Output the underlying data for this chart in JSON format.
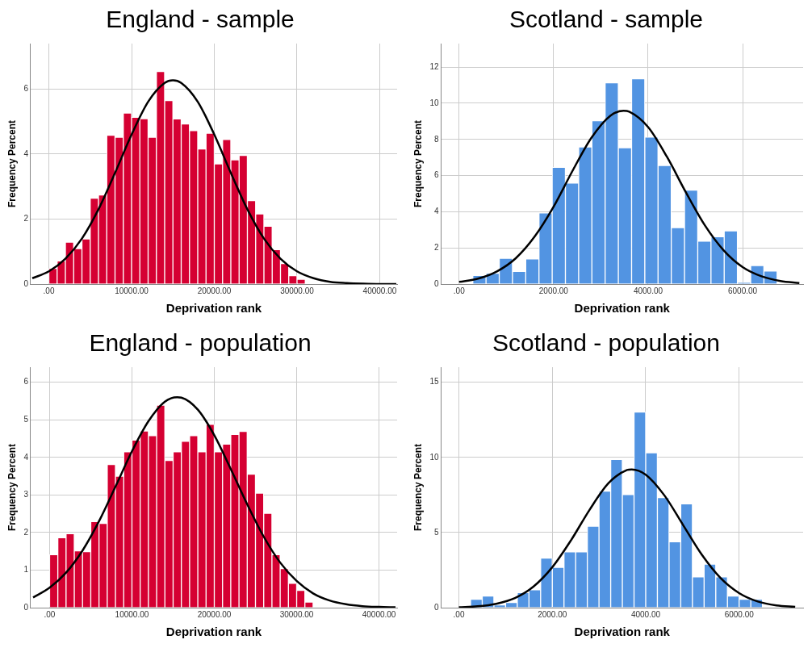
{
  "chart_data": [
    {
      "type": "histogram",
      "title": "England - sample",
      "xlabel": "Deprivation rank",
      "ylabel": "Frequency Percent",
      "grid": true,
      "marker": "none",
      "xlim": [
        -2200,
        42100
      ],
      "ylim": [
        0,
        7.4
      ],
      "xticks": [
        {
          "value": 0,
          "label": ".00"
        },
        {
          "value": 10000,
          "label": "10000.00"
        },
        {
          "value": 20000,
          "label": "20000.00"
        },
        {
          "value": 30000,
          "label": "30000.00"
        },
        {
          "value": 40000,
          "label": "40000.00"
        }
      ],
      "yticks": [
        0,
        2,
        4,
        6
      ],
      "series": [
        {
          "color": "#d50032",
          "bins": [
            0,
            1000,
            2000,
            3000,
            4000,
            5000,
            6000,
            7000,
            8000,
            9000,
            10000,
            11000,
            12000,
            13000,
            14000,
            15000,
            16000,
            17000,
            18000,
            19000,
            20000,
            21000,
            22000,
            23000,
            24000,
            25000,
            26000,
            27000,
            28000,
            29000,
            30000,
            31000,
            32000
          ],
          "values": [
            0.48,
            0.71,
            1.29,
            1.09,
            1.39,
            2.64,
            2.74,
            4.58,
            4.52,
            5.26,
            5.13,
            5.09,
            4.52,
            6.54,
            5.65,
            5.08,
            4.93,
            4.72,
            4.16,
            4.64,
            3.7,
            4.45,
            3.82,
            3.96,
            2.57,
            2.16,
            1.78,
            1.06,
            0.63,
            0.26,
            0.15,
            null
          ]
        },
        {
          "type": "line",
          "color": "#000000",
          "x": [
            -2000,
            0,
            2000,
            4000,
            6000,
            8000,
            10000,
            12000,
            14000,
            15000,
            16000,
            18000,
            20000,
            22000,
            24000,
            26000,
            28000,
            30000,
            32000,
            34000,
            36000,
            38000,
            40000,
            42000
          ],
          "values": [
            0.18,
            0.39,
            0.78,
            1.4,
            2.3,
            3.42,
            4.6,
            5.61,
            6.19,
            6.27,
            6.19,
            5.61,
            4.6,
            3.42,
            2.3,
            1.4,
            0.78,
            0.39,
            0.18,
            0.07,
            0.03,
            0.01,
            0,
            0
          ]
        }
      ]
    },
    {
      "type": "histogram",
      "title": "Scotland - sample",
      "xlabel": "Deprivation rank",
      "ylabel": "Frequency Percent",
      "grid": true,
      "marker": "none",
      "xlim": [
        -380,
        7280
      ],
      "ylim": [
        0,
        13.3
      ],
      "xticks": [
        {
          "value": 0,
          "label": ".00"
        },
        {
          "value": 2000,
          "label": "2000.00"
        },
        {
          "value": 4000,
          "label": "4000.00"
        },
        {
          "value": 6000,
          "label": "6000.00"
        }
      ],
      "yticks": [
        0,
        2,
        4,
        6,
        8,
        10,
        12
      ],
      "series": [
        {
          "color": "#5294e2",
          "bins": [
            290,
            570,
            850,
            1130,
            1410,
            1690,
            1970,
            2250,
            2530,
            2810,
            3090,
            3370,
            3650,
            3930,
            4210,
            4490,
            4770,
            5050,
            5330,
            5610,
            5890,
            6170,
            6450,
            6730
          ],
          "values": [
            0.48,
            0.6,
            1.42,
            0.7,
            1.39,
            3.94,
            6.46,
            5.59,
            7.58,
            9.03,
            11.13,
            7.54,
            11.36,
            8.13,
            6.56,
            3.12,
            5.2,
            2.37,
            2.62,
            2.94,
            0.09,
            1.02,
            0.72
          ]
        },
        {
          "type": "line",
          "color": "#000000",
          "x": [
            0,
            400,
            800,
            1200,
            1600,
            2000,
            2400,
            2800,
            3200,
            3480,
            3600,
            4000,
            4400,
            4800,
            5200,
            5600,
            6000,
            6400,
            6800,
            7200
          ],
          "values": [
            0.12,
            0.3,
            0.7,
            1.43,
            2.63,
            4.28,
            6.26,
            8.09,
            9.31,
            9.58,
            9.53,
            8.68,
            7.03,
            5.07,
            3.25,
            1.86,
            0.94,
            0.43,
            0.17,
            0.06
          ]
        }
      ]
    },
    {
      "type": "histogram",
      "title": "England - population",
      "xlabel": "Deprivation rank",
      "ylabel": "Frequency Percent",
      "grid": true,
      "marker": "none",
      "xlim": [
        -2300,
        42200
      ],
      "ylim": [
        0,
        6.4
      ],
      "xticks": [
        {
          "value": 0,
          "label": ".00"
        },
        {
          "value": 10000,
          "label": "10000.00"
        },
        {
          "value": 20000,
          "label": "20000.00"
        },
        {
          "value": 30000,
          "label": "30000.00"
        },
        {
          "value": 40000,
          "label": "40000.00"
        }
      ],
      "yticks": [
        0,
        1,
        2,
        3,
        4,
        5,
        6
      ],
      "series": [
        {
          "color": "#d50032",
          "bins": [
            0,
            1000,
            2000,
            3000,
            4000,
            5000,
            6000,
            7000,
            8000,
            9000,
            10000,
            11000,
            12000,
            13000,
            14000,
            15000,
            16000,
            17000,
            18000,
            19000,
            20000,
            21000,
            22000,
            23000,
            24000,
            25000,
            26000,
            27000,
            28000,
            29000,
            30000,
            31000,
            32000
          ],
          "values": [
            1.41,
            1.86,
            1.97,
            1.51,
            1.49,
            2.29,
            2.24,
            3.81,
            3.5,
            4.15,
            4.46,
            4.7,
            4.58,
            5.39,
            3.92,
            4.15,
            4.43,
            4.58,
            4.15,
            4.88,
            4.15,
            4.35,
            4.61,
            4.69,
            3.55,
            3.05,
            2.51,
            1.41,
            1.04,
            0.65,
            0.46,
            0.15
          ]
        },
        {
          "type": "line",
          "color": "#000000",
          "x": [
            -2000,
            0,
            2000,
            4000,
            6000,
            8000,
            10000,
            12000,
            14000,
            15500,
            16000,
            18000,
            20000,
            22000,
            24000,
            26000,
            28000,
            30000,
            32000,
            34000,
            36000,
            38000,
            40000,
            42000
          ],
          "values": [
            0.27,
            0.53,
            0.93,
            1.52,
            2.3,
            3.22,
            4.16,
            4.96,
            5.48,
            5.6,
            5.59,
            5.27,
            4.59,
            3.69,
            2.75,
            1.89,
            1.2,
            0.71,
            0.38,
            0.19,
            0.09,
            0.04,
            0.02,
            0.01
          ]
        }
      ]
    },
    {
      "type": "histogram",
      "title": "Scotland - population",
      "xlabel": "Deprivation rank",
      "ylabel": "Frequency Percent",
      "grid": true,
      "marker": "none",
      "xlim": [
        -380,
        7370
      ],
      "ylim": [
        0,
        16
      ],
      "xticks": [
        {
          "value": 0,
          "label": ".00"
        },
        {
          "value": 2000,
          "label": "2000.00"
        },
        {
          "value": 4000,
          "label": "4000.00"
        },
        {
          "value": 6000,
          "label": "6000.00"
        }
      ],
      "yticks": [
        0,
        5,
        10,
        15
      ],
      "series": [
        {
          "color": "#5294e2",
          "bins": [
            250,
            500,
            750,
            1000,
            1250,
            1500,
            1750,
            2000,
            2250,
            2500,
            2750,
            3000,
            3250,
            3500,
            3750,
            4000,
            4250,
            4500,
            4750,
            5000,
            5250,
            5500,
            5750,
            6000,
            6250,
            6500
          ],
          "values": [
            0.56,
            0.77,
            0.18,
            0.35,
            1.0,
            1.19,
            3.3,
            2.68,
            3.72,
            3.72,
            5.42,
            7.75,
            9.86,
            7.53,
            13.02,
            10.3,
            7.33,
            4.39,
            6.91,
            2.05,
            2.89,
            2.05,
            0.77,
            0.56,
            0.56
          ]
        },
        {
          "type": "line",
          "color": "#000000",
          "x": [
            0,
            400,
            800,
            1200,
            1600,
            2000,
            2400,
            2800,
            3200,
            3600,
            3700,
            4000,
            4400,
            4800,
            5200,
            5600,
            6000,
            6400,
            6800,
            7200
          ],
          "values": [
            0.03,
            0.09,
            0.26,
            0.64,
            1.41,
            2.69,
            4.48,
            6.52,
            8.27,
            9.16,
            9.2,
            8.85,
            7.47,
            5.5,
            3.53,
            1.98,
            0.97,
            0.41,
            0.15,
            0.05
          ]
        }
      ]
    }
  ]
}
